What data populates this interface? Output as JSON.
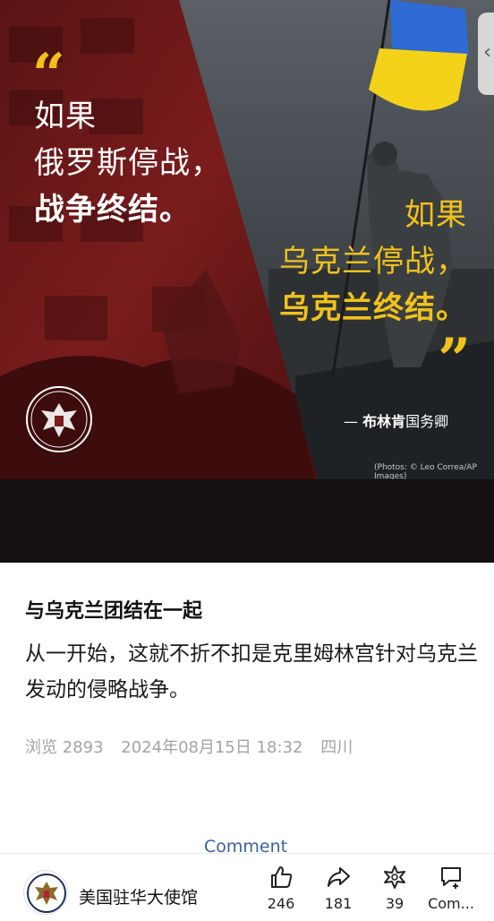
{
  "hero": {
    "left_lines": [
      "如果",
      "俄罗斯停战，",
      "战争终结。"
    ],
    "right_lines": [
      "如果",
      "乌克兰停战，",
      "乌克兰终结。"
    ],
    "attribution_dash": "—",
    "attribution_bold": "布林肯",
    "attribution_rest": "国务卿",
    "photo_credit": "(Photos: © Leo Correa/AP Images)",
    "quote_open": "“",
    "quote_close": "”",
    "colors": {
      "accent_yellow": "#f2c21b",
      "red_tint": "#7a1c1c",
      "flag_blue": "#2f6bd4",
      "flag_yellow": "#f4d21a"
    }
  },
  "side_tab": {
    "icon": "chevron-left-icon",
    "glyph": "‹"
  },
  "article": {
    "title": "与乌克兰团结在一起",
    "body": "从一开始，这就不折不扣是克里姆林宫针对乌克兰发动的侵略战争。",
    "views_label": "浏览 2893",
    "date": "2024年08月15日 18:32",
    "location": "四川"
  },
  "comment_link": "Comment",
  "footer": {
    "account_name": "美国驻华大使馆",
    "like_count": "246",
    "share_count": "181",
    "wow_count": "39",
    "comment_label": "Com..."
  }
}
